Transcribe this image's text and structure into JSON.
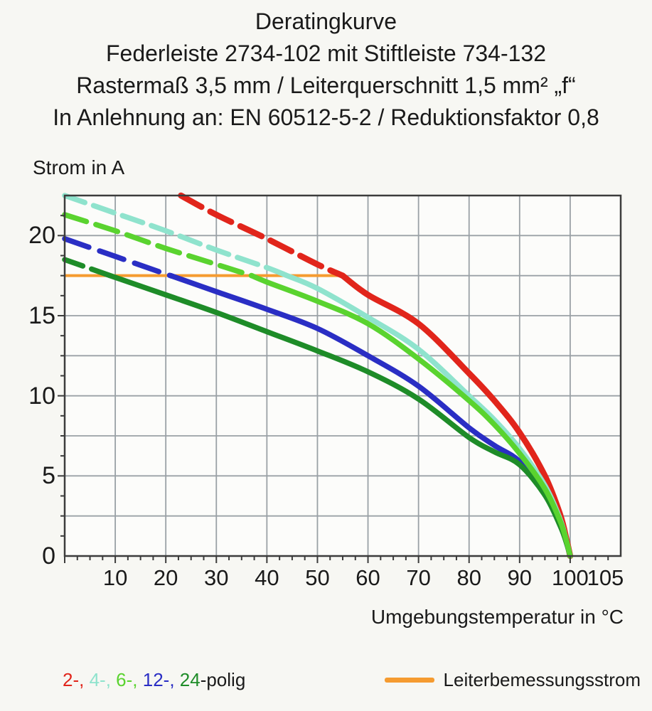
{
  "title_lines": [
    "Deratingkurve",
    "Federleiste 2734-102 mit Stiftleiste 734-132",
    "Rastermaß 3,5 mm / Leiterquerschnitt 1,5 mm² „f“",
    "In Anlehnung an: EN 60512-5-2 / Reduktionsfaktor 0,8"
  ],
  "y_axis_title": "Strom in A",
  "x_axis_title": "Umgebungstemperatur in °C",
  "colors": {
    "red": "#e1251b",
    "cyan": "#8fe3cd",
    "light_green": "#5ad32f",
    "blue": "#2a2ec4",
    "dark_green": "#1e8c28",
    "orange": "#f59b30",
    "ink": "#1a1a1a",
    "grid": "#9aa1a6",
    "frame": "#3c3c3c",
    "plot_bg": "#fcfcfa"
  },
  "legend": {
    "poles_items": [
      {
        "text": "2-, ",
        "color": "#e1251b"
      },
      {
        "text": "4-, ",
        "color": "#8fe3cd"
      },
      {
        "text": "6-, ",
        "color": "#5ad32f"
      },
      {
        "text": "12-, ",
        "color": "#2a2ec4"
      },
      {
        "text": "24",
        "color": "#1e8c28"
      },
      {
        "text": "-polig",
        "color": "#1a1a1a"
      }
    ],
    "rated_current_label": "Leiterbemessungsstrom"
  },
  "chart_data": {
    "type": "line",
    "title": "Deratingkurve Federleiste 2734-102 mit Stiftleiste 734-132",
    "xlabel": "Umgebungstemperatur in °C",
    "ylabel": "Strom in A",
    "xlim": [
      0,
      110
    ],
    "ylim": [
      0,
      22.5
    ],
    "x_grid_step": 10,
    "y_grid_step": 2.5,
    "grid": true,
    "legend_position": "bottom",
    "x_tick_labels": [
      {
        "t": 10,
        "label": "10"
      },
      {
        "t": 20,
        "label": "20"
      },
      {
        "t": 30,
        "label": "30"
      },
      {
        "t": 40,
        "label": "40"
      },
      {
        "t": 50,
        "label": "50"
      },
      {
        "t": 60,
        "label": "60"
      },
      {
        "t": 70,
        "label": "70"
      },
      {
        "t": 80,
        "label": "80"
      },
      {
        "t": 90,
        "label": "90"
      },
      {
        "t": 100,
        "label": "100"
      },
      {
        "t": 105,
        "label": "105",
        "dx": 14
      }
    ],
    "y_tick_labels": [
      {
        "i": 0,
        "label": "0"
      },
      {
        "i": 5,
        "label": "5"
      },
      {
        "i": 10,
        "label": "10"
      },
      {
        "i": 15,
        "label": "15"
      },
      {
        "i": 20,
        "label": "20"
      }
    ],
    "rated_current": {
      "label": "Leiterbemessungsstrom",
      "value_A": 17.5,
      "x_range_degC": [
        0,
        55
      ],
      "color": "#f59b30"
    },
    "note": "curves dashed above rated current 17.5 A, solid below; all reach 0 A at 100 °C",
    "series": [
      {
        "name": "2-polig",
        "color": "#e1251b",
        "width": 8.5,
        "dash": "33 14",
        "split_T": 55,
        "z": 1,
        "points": [
          [
            23,
            22.5
          ],
          [
            30,
            21.3
          ],
          [
            40,
            19.8
          ],
          [
            50,
            18.2
          ],
          [
            55,
            17.5
          ],
          [
            60,
            16.3
          ],
          [
            70,
            14.5
          ],
          [
            80,
            11.4
          ],
          [
            85,
            9.7
          ],
          [
            90,
            7.7
          ],
          [
            95,
            5.0
          ],
          [
            98,
            2.6
          ],
          [
            99.3,
            1.0
          ],
          [
            100,
            0
          ]
        ]
      },
      {
        "name": "4-polig",
        "color": "#8fe3cd",
        "width": 7.5,
        "dash": "30 13",
        "split_T": 44,
        "z": 2,
        "points": [
          [
            0,
            22.5
          ],
          [
            10,
            21.4
          ],
          [
            20,
            20.3
          ],
          [
            30,
            19.1
          ],
          [
            40,
            18.0
          ],
          [
            44,
            17.5
          ],
          [
            50,
            16.7
          ],
          [
            60,
            14.9
          ],
          [
            70,
            12.9
          ],
          [
            80,
            10.0
          ],
          [
            85,
            8.5
          ],
          [
            90,
            6.7
          ],
          [
            95,
            4.4
          ],
          [
            98,
            2.3
          ],
          [
            99.3,
            0.9
          ],
          [
            100,
            0
          ]
        ]
      },
      {
        "name": "6-polig",
        "color": "#5ad32f",
        "width": 7.5,
        "dash": "32 14",
        "split_T": 37,
        "z": 5,
        "points": [
          [
            0,
            21.3
          ],
          [
            10,
            20.3
          ],
          [
            20,
            19.2
          ],
          [
            30,
            18.2
          ],
          [
            37,
            17.5
          ],
          [
            40,
            17.1
          ],
          [
            50,
            15.9
          ],
          [
            60,
            14.5
          ],
          [
            70,
            12.3
          ],
          [
            80,
            9.7
          ],
          [
            85,
            8.2
          ],
          [
            90,
            6.4
          ],
          [
            95,
            4.2
          ],
          [
            98,
            2.2
          ],
          [
            99.3,
            0.9
          ],
          [
            100,
            0
          ]
        ]
      },
      {
        "name": "12-polig",
        "color": "#2a2ec4",
        "width": 7.5,
        "dash": "36 16",
        "split_T": 21,
        "z": 3,
        "points": [
          [
            0,
            19.8
          ],
          [
            10,
            18.7
          ],
          [
            20,
            17.6
          ],
          [
            21,
            17.5
          ],
          [
            30,
            16.5
          ],
          [
            40,
            15.4
          ],
          [
            50,
            14.2
          ],
          [
            60,
            12.5
          ],
          [
            70,
            10.6
          ],
          [
            80,
            8.0
          ],
          [
            85,
            6.9
          ],
          [
            90,
            5.9
          ],
          [
            95,
            3.9
          ],
          [
            98,
            2.0
          ],
          [
            99.3,
            0.8
          ],
          [
            100,
            0
          ]
        ]
      },
      {
        "name": "24-polig",
        "color": "#1e8c28",
        "width": 7.5,
        "dash": "27 13",
        "split_T": 9,
        "z": 4,
        "points": [
          [
            0,
            18.5
          ],
          [
            9,
            17.5
          ],
          [
            20,
            16.3
          ],
          [
            30,
            15.2
          ],
          [
            40,
            14.0
          ],
          [
            50,
            12.8
          ],
          [
            60,
            11.5
          ],
          [
            70,
            9.8
          ],
          [
            80,
            7.4
          ],
          [
            85,
            6.5
          ],
          [
            90,
            5.7
          ],
          [
            95,
            3.8
          ],
          [
            98,
            1.9
          ],
          [
            99.3,
            0.8
          ],
          [
            100,
            0
          ]
        ]
      }
    ]
  }
}
